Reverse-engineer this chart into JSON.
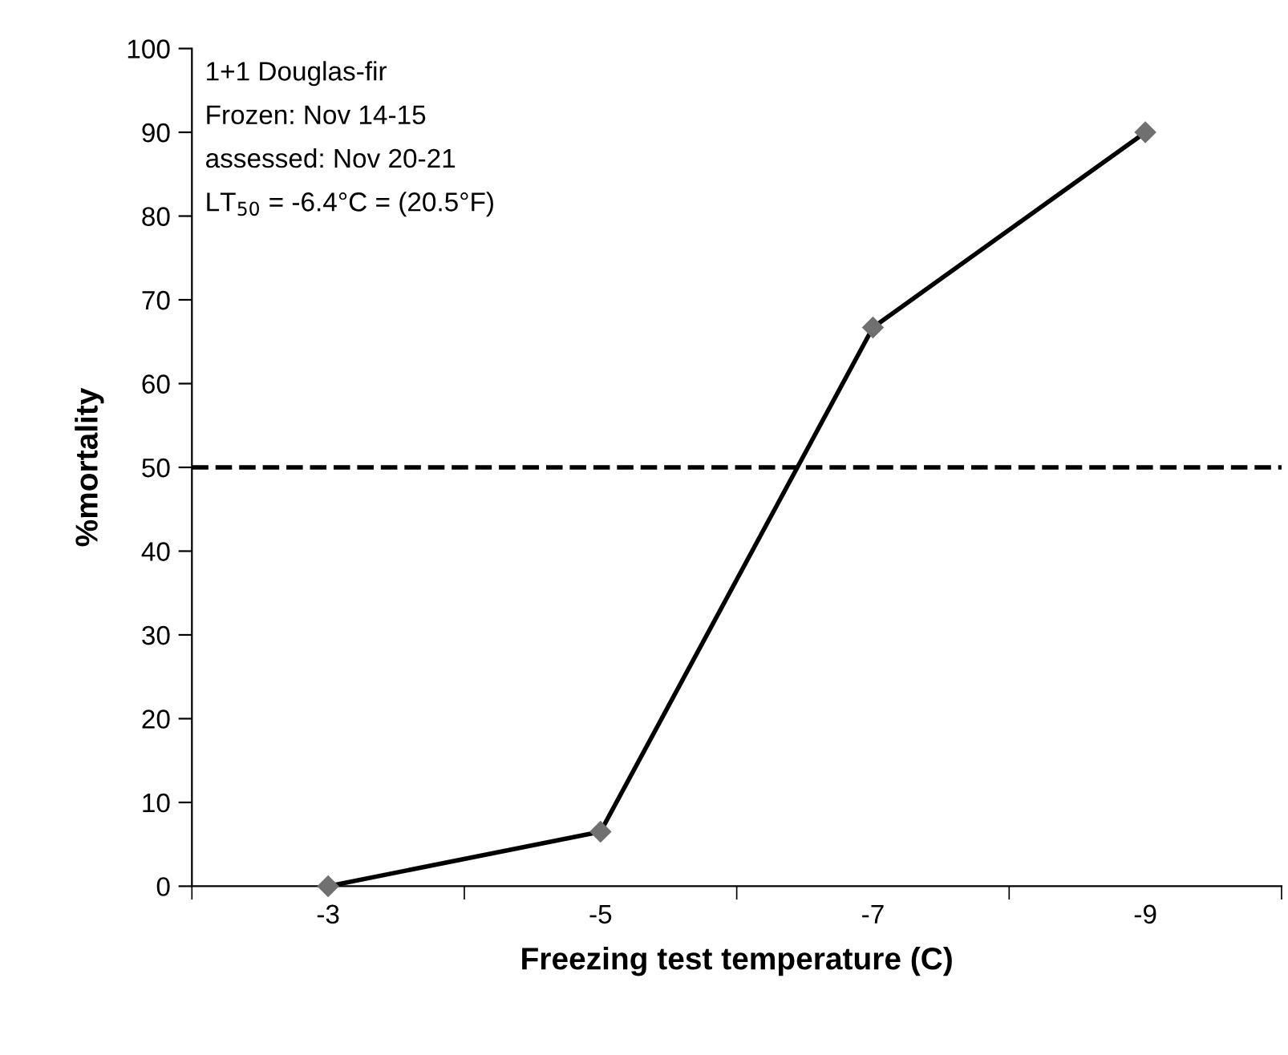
{
  "chart_data": {
    "type": "line",
    "xlabel": "Freezing test temperature (C)",
    "ylabel": "%mortality",
    "categories": [
      "-3",
      "-5",
      "-7",
      "-9"
    ],
    "series": [
      {
        "color": "#000000",
        "values": [
          0,
          6.5,
          66.7,
          90
        ]
      }
    ],
    "marker": "diamond",
    "line_style": "solid",
    "ylim": [
      0,
      100
    ],
    "yticks": [
      0,
      10,
      20,
      30,
      40,
      50,
      60,
      70,
      80,
      90,
      100
    ],
    "grid": false,
    "legend": false,
    "ref_lines": [
      {
        "axis": "y",
        "value": 50,
        "color": "#000000",
        "line_style": "dashed"
      }
    ],
    "annotations": [
      "1+1 Douglas-fir",
      "Frozen: Nov 14-15",
      "assessed: Nov 20-21",
      "LT$_{50}$ = -6.4°C = (20.5°F)"
    ]
  }
}
